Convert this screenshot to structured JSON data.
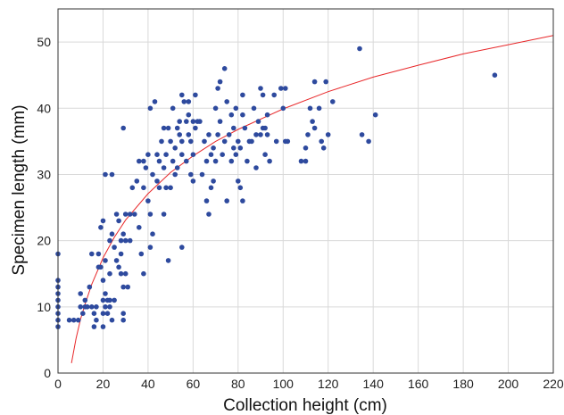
{
  "chart_data": {
    "type": "scatter",
    "title": "",
    "xlabel": "Collection height (cm)",
    "ylabel": "Specimen length (mm)",
    "xlim": [
      0,
      220
    ],
    "ylim": [
      0,
      55
    ],
    "xticks": [
      0,
      20,
      40,
      60,
      80,
      100,
      120,
      140,
      160,
      180,
      200,
      220
    ],
    "yticks": [
      0,
      10,
      20,
      30,
      40,
      50
    ],
    "grid": true,
    "point_color": "#2e4a9e",
    "fit_color": "#e8282a",
    "points": [
      [
        0,
        18
      ],
      [
        0,
        14
      ],
      [
        0,
        13
      ],
      [
        0,
        12
      ],
      [
        0,
        11
      ],
      [
        0,
        10
      ],
      [
        0,
        9
      ],
      [
        0,
        8
      ],
      [
        0,
        7
      ],
      [
        5,
        8
      ],
      [
        7,
        8
      ],
      [
        9,
        8
      ],
      [
        10,
        12
      ],
      [
        10,
        10
      ],
      [
        11,
        9
      ],
      [
        12,
        11
      ],
      [
        12,
        10
      ],
      [
        13,
        10
      ],
      [
        14,
        13
      ],
      [
        15,
        10
      ],
      [
        15,
        18
      ],
      [
        16,
        9
      ],
      [
        16,
        7
      ],
      [
        17,
        10
      ],
      [
        17,
        8
      ],
      [
        18,
        18
      ],
      [
        18,
        16
      ],
      [
        19,
        22
      ],
      [
        19,
        16
      ],
      [
        20,
        23
      ],
      [
        20,
        14
      ],
      [
        20,
        11
      ],
      [
        20,
        9
      ],
      [
        20,
        7
      ],
      [
        21,
        30
      ],
      [
        21,
        17
      ],
      [
        21,
        12
      ],
      [
        21,
        10
      ],
      [
        22,
        11
      ],
      [
        22,
        9
      ],
      [
        23,
        20
      ],
      [
        23,
        15
      ],
      [
        23,
        11
      ],
      [
        23,
        10
      ],
      [
        24,
        21
      ],
      [
        24,
        30
      ],
      [
        24,
        8
      ],
      [
        25,
        19
      ],
      [
        25,
        11
      ],
      [
        26,
        24
      ],
      [
        26,
        17
      ],
      [
        27,
        16
      ],
      [
        27,
        23
      ],
      [
        28,
        20
      ],
      [
        28,
        18
      ],
      [
        28,
        15
      ],
      [
        29,
        37
      ],
      [
        29,
        21
      ],
      [
        29,
        13
      ],
      [
        29,
        9
      ],
      [
        29,
        8
      ],
      [
        30,
        24
      ],
      [
        30,
        20
      ],
      [
        30,
        15
      ],
      [
        31,
        13
      ],
      [
        32,
        24
      ],
      [
        32,
        20
      ],
      [
        33,
        28
      ],
      [
        34,
        24
      ],
      [
        35,
        29
      ],
      [
        36,
        32
      ],
      [
        36,
        22
      ],
      [
        37,
        18
      ],
      [
        38,
        32
      ],
      [
        38,
        28
      ],
      [
        38,
        15
      ],
      [
        39,
        31
      ],
      [
        40,
        33
      ],
      [
        40,
        26
      ],
      [
        41,
        40
      ],
      [
        41,
        24
      ],
      [
        41,
        19
      ],
      [
        42,
        30
      ],
      [
        42,
        21
      ],
      [
        43,
        41
      ],
      [
        44,
        33
      ],
      [
        44,
        29
      ],
      [
        45,
        32
      ],
      [
        45,
        28
      ],
      [
        46,
        35
      ],
      [
        47,
        37
      ],
      [
        47,
        31
      ],
      [
        47,
        24
      ],
      [
        48,
        33
      ],
      [
        48,
        28
      ],
      [
        49,
        37
      ],
      [
        49,
        17
      ],
      [
        50,
        35
      ],
      [
        50,
        28
      ],
      [
        51,
        40
      ],
      [
        51,
        32
      ],
      [
        52,
        34
      ],
      [
        52,
        30
      ],
      [
        53,
        37
      ],
      [
        53,
        31
      ],
      [
        54,
        38
      ],
      [
        54,
        36
      ],
      [
        55,
        35
      ],
      [
        55,
        42
      ],
      [
        55,
        33
      ],
      [
        55,
        19
      ],
      [
        56,
        41
      ],
      [
        57,
        38
      ],
      [
        57,
        32
      ],
      [
        58,
        39
      ],
      [
        58,
        41
      ],
      [
        58,
        36
      ],
      [
        59,
        35
      ],
      [
        59,
        30
      ],
      [
        60,
        38
      ],
      [
        60,
        33
      ],
      [
        60,
        29
      ],
      [
        61,
        42
      ],
      [
        61,
        37
      ],
      [
        62,
        38
      ],
      [
        63,
        38
      ],
      [
        64,
        30
      ],
      [
        65,
        35
      ],
      [
        66,
        32
      ],
      [
        66,
        26
      ],
      [
        67,
        24
      ],
      [
        67,
        36
      ],
      [
        68,
        33
      ],
      [
        68,
        28
      ],
      [
        69,
        34
      ],
      [
        69,
        29
      ],
      [
        70,
        32
      ],
      [
        70,
        40
      ],
      [
        71,
        43
      ],
      [
        71,
        36
      ],
      [
        72,
        44
      ],
      [
        72,
        38
      ],
      [
        73,
        33
      ],
      [
        74,
        46
      ],
      [
        74,
        35
      ],
      [
        75,
        26
      ],
      [
        75,
        41
      ],
      [
        76,
        36
      ],
      [
        77,
        32
      ],
      [
        77,
        39
      ],
      [
        78,
        34
      ],
      [
        78,
        37
      ],
      [
        79,
        40
      ],
      [
        79,
        33
      ],
      [
        80,
        29
      ],
      [
        80,
        35
      ],
      [
        81,
        28
      ],
      [
        81,
        34
      ],
      [
        82,
        42
      ],
      [
        82,
        39
      ],
      [
        82,
        26
      ],
      [
        83,
        37
      ],
      [
        84,
        32
      ],
      [
        85,
        35
      ],
      [
        86,
        35
      ],
      [
        87,
        40
      ],
      [
        88,
        36
      ],
      [
        88,
        31
      ],
      [
        89,
        38
      ],
      [
        90,
        36
      ],
      [
        90,
        43
      ],
      [
        91,
        42
      ],
      [
        91,
        37
      ],
      [
        92,
        37
      ],
      [
        92,
        33
      ],
      [
        93,
        39
      ],
      [
        93,
        36
      ],
      [
        94,
        32
      ],
      [
        96,
        42
      ],
      [
        97,
        35
      ],
      [
        99,
        43
      ],
      [
        100,
        40
      ],
      [
        101,
        43
      ],
      [
        101,
        35
      ],
      [
        102,
        35
      ],
      [
        108,
        32
      ],
      [
        110,
        32
      ],
      [
        110,
        34
      ],
      [
        111,
        36
      ],
      [
        112,
        40
      ],
      [
        113,
        38
      ],
      [
        114,
        44
      ],
      [
        114,
        37
      ],
      [
        116,
        40
      ],
      [
        117,
        35
      ],
      [
        118,
        34
      ],
      [
        119,
        44
      ],
      [
        120,
        36
      ],
      [
        122,
        41
      ],
      [
        134,
        49
      ],
      [
        135,
        36
      ],
      [
        138,
        35
      ],
      [
        141,
        39
      ],
      [
        194,
        45
      ]
    ],
    "fit": {
      "model": "logarithmic",
      "x": [
        6,
        8,
        10,
        12,
        15,
        20,
        25,
        30,
        40,
        50,
        60,
        70,
        80,
        100,
        120,
        140,
        160,
        180,
        200,
        220
      ],
      "y": [
        1.5,
        5.2,
        8.1,
        10.4,
        13.4,
        17.4,
        20.5,
        23.1,
        27.1,
        30.3,
        32.8,
        35.0,
        36.8,
        39.9,
        42.5,
        44.7,
        46.5,
        48.2,
        49.6,
        51.0
      ]
    }
  }
}
